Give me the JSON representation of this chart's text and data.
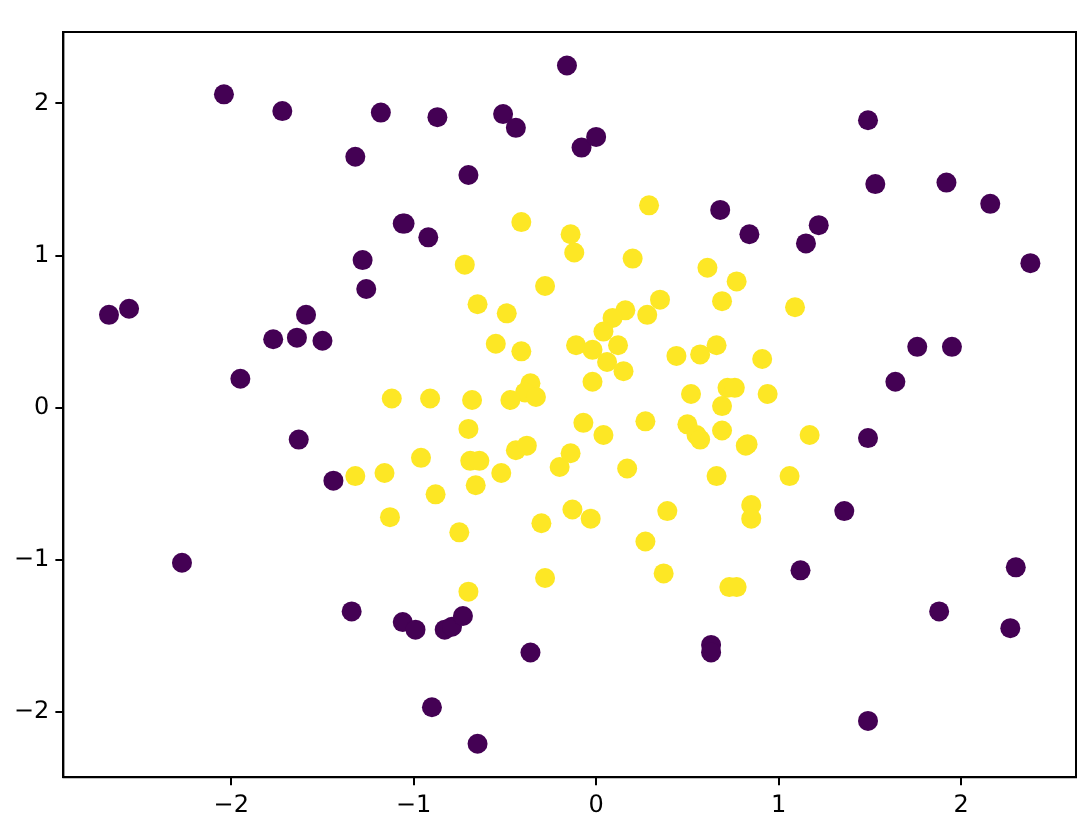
{
  "chart_data": {
    "type": "scatter",
    "marker": "circle",
    "grid": false,
    "legend": false,
    "xlim": [
      -2.92,
      2.63
    ],
    "ylim": [
      -2.43,
      2.47
    ],
    "xticks": [
      -2,
      -1,
      0,
      1,
      2
    ],
    "yticks": [
      -2,
      -1,
      0,
      1,
      2
    ],
    "series": [
      {
        "color": "#440154",
        "x": [
          -2.04,
          -1.72,
          -1.18,
          -1.32,
          -1.06,
          -1.28,
          -1.26,
          -2.67,
          -2.56,
          -1.59,
          -1.77,
          -1.64,
          -1.5,
          -1.95,
          -0.16,
          -0.87,
          -0.51,
          -0.44,
          -0.08,
          0.0,
          -0.7,
          -1.05,
          -0.92,
          0.68,
          0.84,
          1.49,
          1.53,
          1.92,
          2.16,
          2.38,
          1.22,
          1.15,
          1.76,
          1.95,
          1.64,
          -1.63,
          -1.44,
          -2.27,
          -1.34,
          -1.06,
          -0.99,
          -0.83,
          -0.79,
          -0.73,
          -0.36,
          0.63,
          0.63,
          -0.9,
          -0.65,
          1.49,
          1.36,
          1.12,
          2.3,
          1.88,
          2.27,
          1.49
        ],
        "values": [
          2.06,
          1.95,
          1.94,
          1.65,
          1.21,
          0.97,
          0.78,
          0.61,
          0.65,
          0.61,
          0.45,
          0.46,
          0.44,
          0.19,
          2.25,
          1.91,
          1.93,
          1.84,
          1.71,
          1.78,
          1.53,
          1.21,
          1.12,
          1.3,
          1.14,
          1.89,
          1.47,
          1.48,
          1.34,
          0.95,
          1.2,
          1.08,
          0.4,
          0.4,
          0.17,
          -0.21,
          -0.48,
          -1.02,
          -1.34,
          -1.41,
          -1.46,
          -1.46,
          -1.44,
          -1.37,
          -1.61,
          -1.56,
          -1.61,
          -1.97,
          -2.21,
          -0.2,
          -0.68,
          -1.07,
          -1.05,
          -1.34,
          -1.45,
          -2.06
        ]
      },
      {
        "color": "#fde725",
        "x": [
          -1.12,
          0.29,
          -0.41,
          -0.14,
          -0.12,
          0.2,
          -0.72,
          0.61,
          0.77,
          -0.28,
          -0.65,
          0.69,
          0.35,
          -0.49,
          0.16,
          0.28,
          0.09,
          0.04,
          -0.55,
          -0.41,
          -0.11,
          -0.02,
          0.12,
          0.06,
          0.15,
          0.44,
          0.57,
          0.66,
          -0.02,
          0.52,
          0.72,
          0.76,
          -0.36,
          -0.39,
          -0.33,
          -0.47,
          -0.68,
          -0.91,
          1.09,
          0.91,
          0.94,
          -1.32,
          -1.16,
          -1.13,
          -0.07,
          0.04,
          0.27,
          0.5,
          0.55,
          0.57,
          0.69,
          0.69,
          -0.96,
          -0.7,
          -0.69,
          -0.64,
          -0.66,
          -0.88,
          -0.52,
          -0.44,
          -0.38,
          -0.2,
          -0.14,
          0.17,
          0.66,
          0.82,
          -0.75,
          -0.3,
          -0.13,
          -0.03,
          0.39,
          0.27,
          0.37,
          -0.28,
          -0.7,
          0.73,
          0.77,
          0.83,
          1.17,
          1.06,
          0.85,
          0.85
        ],
        "values": [
          0.06,
          1.33,
          1.22,
          1.14,
          1.02,
          0.98,
          0.94,
          0.92,
          0.83,
          0.8,
          0.68,
          0.7,
          0.71,
          0.62,
          0.64,
          0.61,
          0.59,
          0.5,
          0.42,
          0.37,
          0.41,
          0.38,
          0.41,
          0.3,
          0.24,
          0.34,
          0.35,
          0.41,
          0.17,
          0.09,
          0.13,
          0.13,
          0.16,
          0.1,
          0.07,
          0.05,
          0.05,
          0.06,
          0.66,
          0.32,
          0.09,
          -0.45,
          -0.43,
          -0.72,
          -0.1,
          -0.18,
          -0.09,
          -0.11,
          -0.18,
          -0.21,
          -0.15,
          0.01,
          -0.33,
          -0.14,
          -0.35,
          -0.35,
          -0.51,
          -0.57,
          -0.43,
          -0.28,
          -0.25,
          -0.39,
          -0.3,
          -0.4,
          -0.45,
          -0.25,
          -0.82,
          -0.76,
          -0.67,
          -0.73,
          -0.68,
          -0.88,
          -1.09,
          -1.12,
          -1.21,
          -1.18,
          -1.18,
          -0.24,
          -0.18,
          -0.45,
          -0.64,
          -0.73
        ]
      }
    ]
  }
}
